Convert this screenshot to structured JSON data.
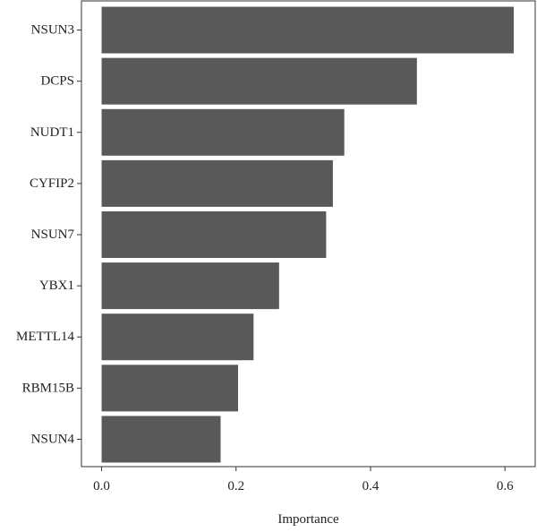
{
  "chart_data": {
    "type": "bar",
    "orientation": "horizontal",
    "title": "",
    "xlabel": "Importance",
    "ylabel": "",
    "categories": [
      "NSUN3",
      "DCPS",
      "NUDT1",
      "CYFIP2",
      "NSUN7",
      "YBX1",
      "METTL14",
      "RBM15B",
      "NSUN4"
    ],
    "values": [
      0.613,
      0.469,
      0.361,
      0.344,
      0.334,
      0.264,
      0.226,
      0.203,
      0.177
    ],
    "xlim": [
      -0.03,
      0.645
    ],
    "xticks": [
      0.0,
      0.2,
      0.4,
      0.6
    ],
    "xtick_labels": [
      "0.0",
      "0.2",
      "0.4",
      "0.6"
    ],
    "grid": false,
    "legend": "none",
    "bar_color": "#595959",
    "axis_color": "#333333"
  }
}
